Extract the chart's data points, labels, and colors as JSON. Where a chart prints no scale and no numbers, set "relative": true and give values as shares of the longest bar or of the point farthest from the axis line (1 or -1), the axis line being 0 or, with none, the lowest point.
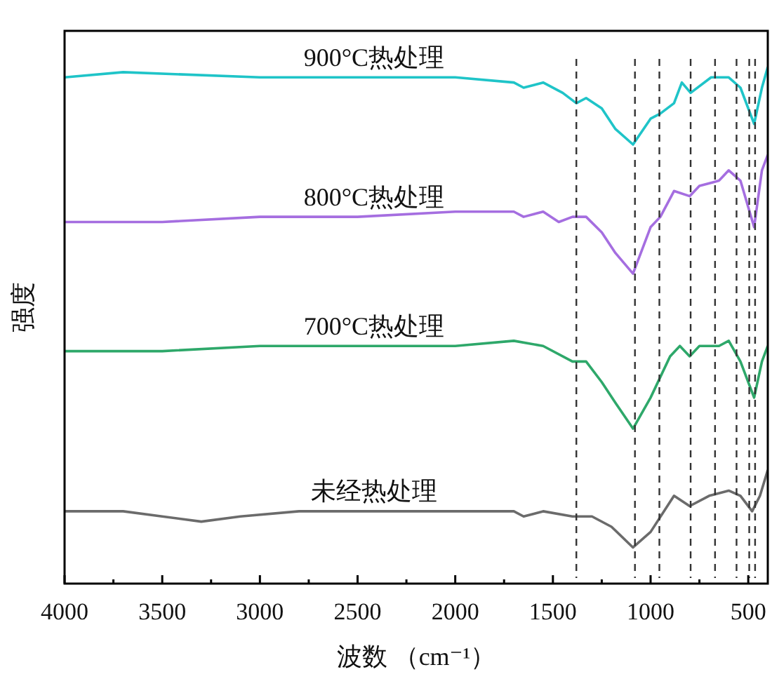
{
  "chart_data": {
    "type": "line",
    "relative": true,
    "xlabel": "波数 （cm⁻¹）",
    "ylabel": "强度",
    "legend": false,
    "marker": "none",
    "line_style": "solid",
    "xlim": [
      4000,
      400
    ],
    "xticks": [
      {
        "value": 4000,
        "label": "4000"
      },
      {
        "value": 3750,
        "label": null
      },
      3500,
      {
        "value": 3250,
        "label": null
      },
      3000,
      {
        "value": 2750,
        "label": null
      },
      2500,
      {
        "value": 2250,
        "label": null
      },
      2000,
      {
        "value": 1750,
        "label": null
      },
      1500,
      {
        "value": 1250,
        "label": null
      },
      1000,
      {
        "value": 750,
        "label": null
      },
      500
    ],
    "series": [
      {
        "name": "900°C热处理",
        "color": "#1fc4c8",
        "x": [
          4000,
          3700,
          3000,
          2000,
          1700,
          1650,
          1550,
          1450,
          1380,
          1330,
          1250,
          1180,
          1090,
          1000,
          950,
          880,
          840,
          795,
          690,
          600,
          540,
          470,
          430,
          400
        ],
        "values": [
          0.98,
          0.99,
          0.98,
          0.98,
          0.97,
          0.96,
          0.97,
          0.95,
          0.93,
          0.94,
          0.92,
          0.88,
          0.85,
          0.9,
          0.91,
          0.93,
          0.97,
          0.95,
          0.98,
          0.98,
          0.96,
          0.89,
          0.96,
          1
        ]
      },
      {
        "name": "800°C热处理",
        "color": "#a56ee0",
        "x": [
          4000,
          3500,
          3000,
          2500,
          2000,
          1700,
          1650,
          1550,
          1470,
          1400,
          1330,
          1250,
          1180,
          1090,
          1000,
          950,
          880,
          800,
          750,
          650,
          600,
          540,
          470,
          430,
          400
        ],
        "values": [
          0.7,
          0.7,
          0.71,
          0.71,
          0.72,
          0.72,
          0.71,
          0.72,
          0.7,
          0.71,
          0.71,
          0.68,
          0.64,
          0.6,
          0.69,
          0.71,
          0.76,
          0.75,
          0.77,
          0.78,
          0.8,
          0.78,
          0.69,
          0.8,
          0.83
        ]
      },
      {
        "name": "700°C热处理",
        "color": "#2ea86a",
        "x": [
          4000,
          3500,
          3000,
          2500,
          2000,
          1700,
          1550,
          1400,
          1330,
          1250,
          1180,
          1090,
          1000,
          900,
          850,
          800,
          750,
          650,
          600,
          540,
          470,
          430,
          400
        ],
        "values": [
          0.45,
          0.45,
          0.46,
          0.46,
          0.46,
          0.47,
          0.46,
          0.43,
          0.43,
          0.39,
          0.35,
          0.3,
          0.36,
          0.44,
          0.46,
          0.44,
          0.46,
          0.46,
          0.47,
          0.43,
          0.36,
          0.43,
          0.46
        ]
      },
      {
        "name": "未经热处理",
        "color": "#6b6b6b",
        "x": [
          4000,
          3700,
          3500,
          3300,
          3100,
          2800,
          2500,
          2000,
          1700,
          1650,
          1550,
          1400,
          1300,
          1200,
          1090,
          1000,
          880,
          800,
          700,
          600,
          540,
          480,
          440,
          400
        ],
        "values": [
          0.14,
          0.14,
          0.13,
          0.12,
          0.13,
          0.14,
          0.14,
          0.14,
          0.14,
          0.13,
          0.14,
          0.13,
          0.13,
          0.11,
          0.07,
          0.1,
          0.17,
          0.15,
          0.17,
          0.18,
          0.17,
          0.14,
          0.17,
          0.22
        ]
      }
    ],
    "ref_lines": [
      {
        "axis": "x",
        "value": 1380,
        "color": "#333333",
        "line_style": "dashed"
      },
      {
        "axis": "x",
        "value": 1080,
        "color": "#333333",
        "line_style": "dashed"
      },
      {
        "axis": "x",
        "value": 955,
        "color": "#333333",
        "line_style": "dashed"
      },
      {
        "axis": "x",
        "value": 795,
        "color": "#333333",
        "line_style": "dashed"
      },
      {
        "axis": "x",
        "value": 670,
        "color": "#333333",
        "line_style": "dashed"
      },
      {
        "axis": "x",
        "value": 560,
        "color": "#333333",
        "line_style": "dashed"
      },
      {
        "axis": "x",
        "value": 495,
        "color": "#333333",
        "line_style": "dashed"
      },
      {
        "axis": "x",
        "value": 465,
        "color": "#333333",
        "line_style": "dashed"
      }
    ]
  }
}
